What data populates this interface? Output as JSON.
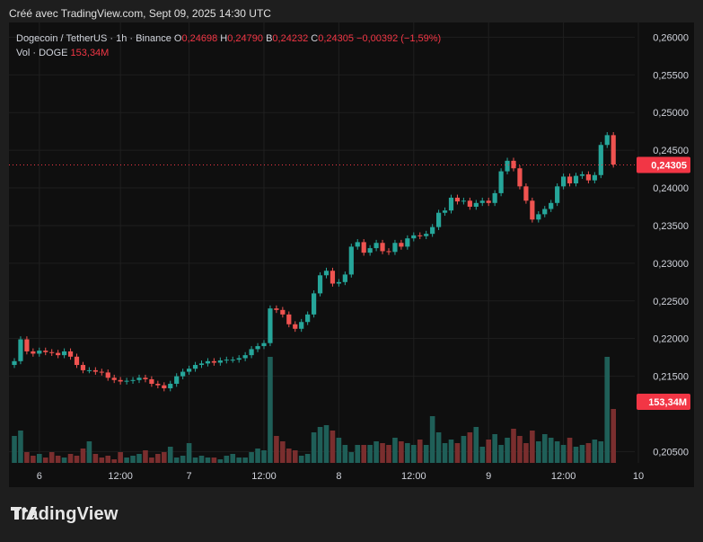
{
  "caption": "Créé avec TradingView.com, Sept 09, 2025 14:30 UTC",
  "legend": {
    "symbol": "Dogecoin / TetherUS · 1h · Binance",
    "o_label": "O",
    "o_value": "0,24698",
    "h_label": "H",
    "h_value": "0,24790",
    "b_label": "B",
    "b_value": "0,24232",
    "c_label": "C",
    "c_value": "0,24305",
    "change": "−0,00392 (−1,59%)",
    "vol_label": "Vol · DOGE",
    "vol_value": "153,34M"
  },
  "brand": {
    "name": "TradingView"
  },
  "colors": {
    "up": "#26a69a",
    "down": "#ef5350",
    "up_vol": "#1f5f58",
    "down_vol": "#7a2e2e",
    "tag": "#f23645"
  },
  "chart_data": {
    "type": "candlestick",
    "symbol": "Dogecoin / TetherUS",
    "interval": "1h",
    "exchange": "Binance",
    "ylim": [
      0.2035,
      0.261
    ],
    "y_ticks": [
      "0,26000",
      "0,25500",
      "0,25000",
      "0,24500",
      "0,24000",
      "0,23500",
      "0,23000",
      "0,22500",
      "0,22000",
      "0,21500",
      "0,20500"
    ],
    "x_ticks": [
      "6",
      "12:00",
      "7",
      "12:00",
      "8",
      "12:00",
      "9",
      "12:00",
      "10"
    ],
    "last_price": "0,24305",
    "last_volume": "153,34M",
    "closes": [
      0.217,
      0.2199,
      0.2183,
      0.218,
      0.2184,
      0.2182,
      0.2181,
      0.2178,
      0.2183,
      0.2176,
      0.2165,
      0.2158,
      0.2158,
      0.2156,
      0.2155,
      0.2148,
      0.2145,
      0.2143,
      0.2144,
      0.2145,
      0.2148,
      0.2146,
      0.214,
      0.2138,
      0.2134,
      0.214,
      0.215,
      0.2156,
      0.216,
      0.2165,
      0.2167,
      0.217,
      0.2168,
      0.2171,
      0.2172,
      0.2172,
      0.2174,
      0.2178,
      0.2186,
      0.219,
      0.2194,
      0.224,
      0.2238,
      0.2232,
      0.2219,
      0.2213,
      0.2222,
      0.2232,
      0.226,
      0.2284,
      0.229,
      0.2273,
      0.2275,
      0.2285,
      0.2322,
      0.2328,
      0.2314,
      0.232,
      0.2327,
      0.2316,
      0.2315,
      0.2327,
      0.2322,
      0.2333,
      0.2337,
      0.2336,
      0.2339,
      0.2348,
      0.2367,
      0.237,
      0.2387,
      0.2382,
      0.2383,
      0.2375,
      0.238,
      0.2383,
      0.238,
      0.2393,
      0.2422,
      0.2436,
      0.2426,
      0.2402,
      0.2383,
      0.2358,
      0.2365,
      0.2372,
      0.238,
      0.2402,
      0.2415,
      0.2406,
      0.2416,
      0.2418,
      0.241,
      0.2417,
      0.2457,
      0.247,
      0.2431
    ],
    "volume_peak": "≈ 190M"
  }
}
